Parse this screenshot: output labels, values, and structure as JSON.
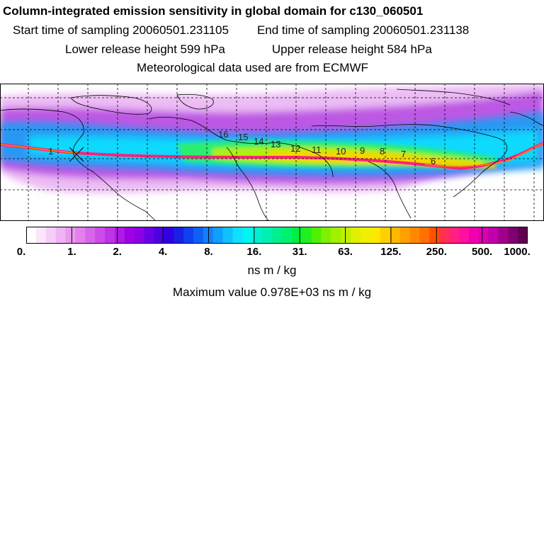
{
  "header": {
    "title": "Column-integrated emission sensitivity in global domain for c130_060501",
    "start_label": "Start time of sampling 20060501.231105",
    "end_label": "End time of sampling 20060501.231138",
    "lower_label": "Lower release height  599 hPa",
    "upper_label": "Upper release height  584 hPa",
    "met_label": "Meteorological data used are from ECMWF"
  },
  "colorbar": {
    "ticks": [
      "0.",
      "1.",
      "2.",
      "4.",
      "8.",
      "16.",
      "31.",
      "63.",
      "125.",
      "250.",
      "500.",
      "1000."
    ],
    "colors": [
      "#ffffff",
      "#fbe6fb",
      "#f6cdf6",
      "#f0b3f3",
      "#ea99ef",
      "#e280ec",
      "#d866ea",
      "#cc4ce8",
      "#bf33e6",
      "#b019e6",
      "#a000e6",
      "#8c00e8",
      "#6a00e6",
      "#4c00e4",
      "#3000e0",
      "#1a20e6",
      "#1040f0",
      "#1060f5",
      "#1080fa",
      "#10a0fc",
      "#10c0ff",
      "#10e0ff",
      "#00f5f0",
      "#00f0d0",
      "#00f0b0",
      "#00f090",
      "#00f070",
      "#00f040",
      "#20f020",
      "#50f000",
      "#80f000",
      "#a0f000",
      "#c0f000",
      "#e0f000",
      "#f0f000",
      "#ffe800",
      "#ffd000",
      "#ffb800",
      "#ffa000",
      "#ff8800",
      "#ff7000",
      "#ff5000",
      "#ff3050",
      "#ff2080",
      "#ff10a0",
      "#f000b0",
      "#d800b0",
      "#c000a8",
      "#a0008c",
      "#800070",
      "#600050"
    ],
    "units": "ns m / kg"
  },
  "max_value_label": "Maximum value  0.978E+03 ns m / kg",
  "map": {
    "contour_labels": [
      "16",
      "15",
      "14",
      "13",
      "12",
      "11",
      "10",
      "9",
      "8",
      "7",
      "6",
      "1"
    ]
  }
}
